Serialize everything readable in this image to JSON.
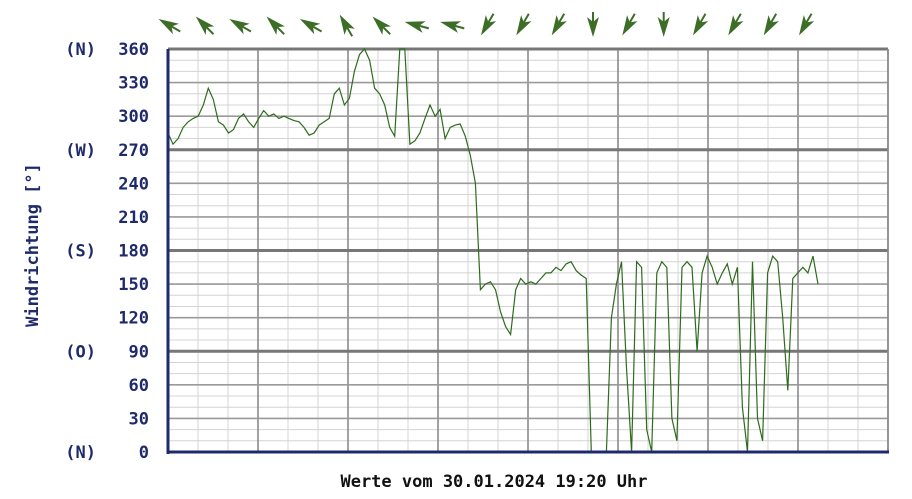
{
  "chart_data": {
    "type": "line",
    "ylabel": "Windrichtung [°]",
    "xlabel": "Werte vom 30.01.2024 19:20 Uhr",
    "ylim": [
      0,
      360
    ],
    "y_ticks": [
      0,
      30,
      60,
      90,
      120,
      150,
      180,
      210,
      240,
      270,
      300,
      330,
      360
    ],
    "compass_labels": [
      {
        "value": 360,
        "label": "(N)"
      },
      {
        "value": 270,
        "label": "(W)"
      },
      {
        "value": 180,
        "label": "(S)"
      },
      {
        "value": 90,
        "label": "(O)"
      },
      {
        "value": 0,
        "label": "(N)"
      }
    ],
    "grid": true,
    "colors": {
      "line": "#2e6b1e",
      "axis": "#1f2a6b",
      "text": "#1f2a6b",
      "grid": "#888888",
      "arrow": "#3c6e28"
    },
    "direction_arrows": [
      300,
      315,
      300,
      315,
      300,
      330,
      315,
      285,
      285,
      210,
      210,
      210,
      180,
      210,
      180,
      210,
      210,
      210,
      210
    ],
    "series": [
      {
        "values": [
          285,
          275,
          280,
          290,
          295,
          298,
          300,
          310,
          325,
          315,
          295,
          292,
          285,
          288,
          298,
          302,
          295,
          290,
          298,
          305,
          300,
          302,
          298,
          300,
          298,
          296,
          295,
          290,
          283,
          285,
          292,
          295,
          298,
          320,
          325,
          310,
          316,
          340,
          355,
          365,
          350,
          325,
          320,
          310,
          290,
          282,
          365,
          365,
          275,
          278,
          285,
          298,
          310,
          300,
          306,
          280,
          290,
          292,
          293,
          282,
          265,
          240,
          145,
          150,
          152,
          145,
          125,
          112,
          105,
          145,
          155,
          150,
          152,
          150,
          155,
          160,
          160,
          165,
          162,
          168,
          170,
          162,
          158,
          155,
          0,
          0,
          0,
          0,
          120,
          150,
          170,
          75,
          0,
          170,
          165,
          20,
          0,
          160,
          170,
          165,
          30,
          10,
          165,
          170,
          165,
          90,
          160,
          175,
          165,
          150,
          160,
          168,
          150,
          165,
          40,
          0,
          170,
          30,
          10,
          160,
          175,
          170,
          120,
          55,
          155,
          160,
          165,
          160,
          175,
          150
        ]
      }
    ]
  }
}
